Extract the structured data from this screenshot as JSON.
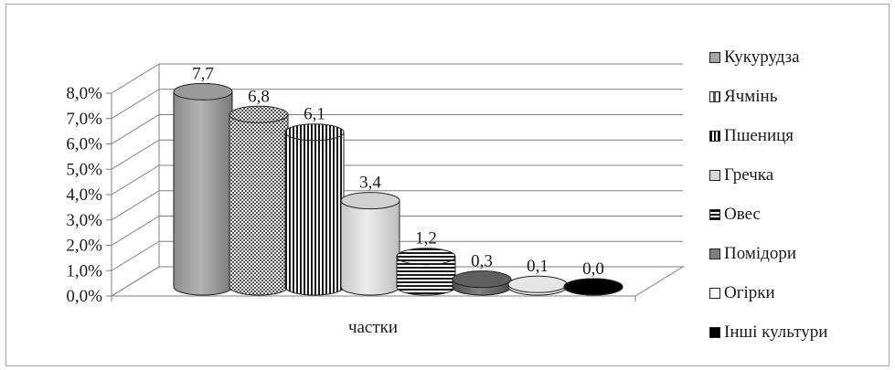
{
  "chart_data": {
    "type": "bar",
    "categories": [
      "частки"
    ],
    "xlabel": "",
    "ylabel": "",
    "ylim": [
      0,
      8
    ],
    "y_ticks": [
      "0,0%",
      "1,0%",
      "2,0%",
      "3,0%",
      "4,0%",
      "5,0%",
      "6,0%",
      "7,0%",
      "8,0%"
    ],
    "grid": true,
    "legend_position": "right",
    "series": [
      {
        "name": "Кукурудза",
        "values": [
          7.7
        ],
        "label": "7,7",
        "color": "#a6a6a6",
        "pattern": "solid-gray"
      },
      {
        "name": "Ячмінь",
        "values": [
          6.8
        ],
        "label": "6,8",
        "color": "#bfbfbf",
        "pattern": "checker"
      },
      {
        "name": "Пшениця",
        "values": [
          6.1
        ],
        "label": "6,1",
        "color": "#ffffff",
        "pattern": "vertical-stripes"
      },
      {
        "name": "Гречка",
        "values": [
          3.4
        ],
        "label": "3,4",
        "color": "#d9d9d9",
        "pattern": "solid-light"
      },
      {
        "name": "Овес",
        "values": [
          1.2
        ],
        "label": "1,2",
        "color": "#ffffff",
        "pattern": "horizontal-stripes"
      },
      {
        "name": "Помідори",
        "values": [
          0.3
        ],
        "label": "0,3",
        "color": "#7f7f7f",
        "pattern": "solid-dark"
      },
      {
        "name": "Огірки",
        "values": [
          0.1
        ],
        "label": "0,1",
        "color": "#f2f2f2",
        "pattern": "solid-white"
      },
      {
        "name": "Інші культури",
        "values": [
          0.0
        ],
        "label": "0,0",
        "color": "#000000",
        "pattern": "solid-black"
      }
    ]
  }
}
